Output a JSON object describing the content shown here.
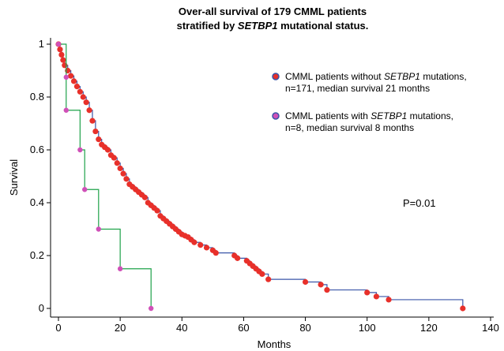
{
  "chart_data": {
    "type": "step",
    "title": [
      "Over-all survival of 179 CMML patients",
      "stratified by ",
      "SETBP1",
      " mutational status."
    ],
    "x_label": "Months",
    "y_label": "Survival",
    "annotation": "P=0.01",
    "xlim": [
      0,
      140
    ],
    "ylim": [
      0,
      1
    ],
    "xticks": [
      0,
      20,
      40,
      60,
      80,
      100,
      120,
      140
    ],
    "yticks": [
      0,
      0.2,
      0.4,
      0.6,
      0.8,
      1
    ],
    "series": [
      {
        "name": [
          "CMML patients without ",
          "SETBP1",
          " mutations,",
          "n=171, median survival 21 months"
        ],
        "color": "#e8302a",
        "line_color": "#3a55a8",
        "x": [
          0,
          0.5,
          1,
          1.5,
          2,
          3,
          4,
          5,
          6,
          7,
          8,
          9,
          10,
          11,
          12,
          13,
          14,
          15,
          16,
          17,
          18,
          19,
          20,
          21,
          22,
          23,
          24,
          25,
          26,
          27,
          28,
          29,
          30,
          31,
          32,
          33,
          34,
          35,
          36,
          37,
          38,
          39,
          40,
          41,
          42,
          43,
          44,
          46,
          48,
          50,
          51,
          57,
          58,
          61,
          62,
          63,
          64,
          65,
          66,
          68,
          80,
          85,
          87,
          100,
          103,
          107,
          131
        ],
        "y": [
          1,
          0.98,
          0.96,
          0.94,
          0.92,
          0.9,
          0.88,
          0.86,
          0.84,
          0.82,
          0.8,
          0.78,
          0.75,
          0.71,
          0.67,
          0.64,
          0.62,
          0.61,
          0.6,
          0.58,
          0.57,
          0.55,
          0.53,
          0.51,
          0.49,
          0.47,
          0.46,
          0.45,
          0.44,
          0.43,
          0.42,
          0.4,
          0.39,
          0.38,
          0.37,
          0.35,
          0.34,
          0.33,
          0.32,
          0.31,
          0.3,
          0.29,
          0.28,
          0.275,
          0.27,
          0.26,
          0.25,
          0.24,
          0.23,
          0.22,
          0.21,
          0.2,
          0.19,
          0.18,
          0.17,
          0.16,
          0.15,
          0.14,
          0.13,
          0.11,
          0.1,
          0.09,
          0.07,
          0.06,
          0.045,
          0.033,
          0
        ]
      },
      {
        "name": [
          "CMML patients with ",
          "SETBP1",
          " mutations,",
          "n=8, median survival 8 months"
        ],
        "color": "#d050b8",
        "line_color": "#1fa24a",
        "x": [
          0,
          2.5,
          2.5,
          7,
          8.5,
          13,
          20,
          30
        ],
        "y": [
          1,
          0.875,
          0.75,
          0.6,
          0.45,
          0.3,
          0.15,
          0
        ]
      }
    ]
  }
}
